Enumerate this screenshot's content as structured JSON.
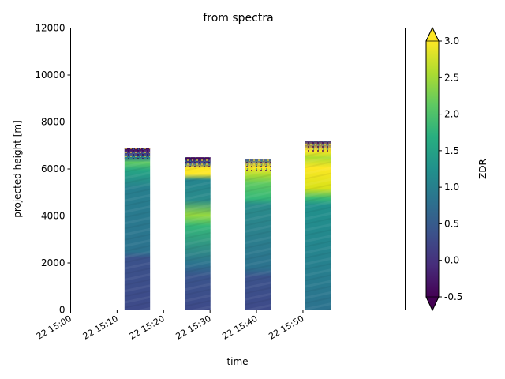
{
  "chart_data": {
    "type": "heatmap",
    "title": "from spectra",
    "xlabel": "time",
    "ylabel": "projected height [m]",
    "colorbar_label": "ZDR",
    "colormap": "viridis",
    "colorbar_extend": "both",
    "x_tick_labels": [
      "22 15:00",
      "22 15:10",
      "22 15:20",
      "22 15:30",
      "22 15:40",
      "22 15:50"
    ],
    "x_range_minutes": [
      0,
      60
    ],
    "y_ticks": [
      0,
      2000,
      4000,
      6000,
      8000,
      10000,
      12000
    ],
    "ylim": [
      0,
      12000
    ],
    "colorbar_ticks": [
      "-0.5",
      "0.0",
      "0.5",
      "1.0",
      "1.5",
      "2.0",
      "2.5",
      "3.0"
    ],
    "clim": [
      -0.5,
      3.0
    ],
    "segments": [
      {
        "start_min": 11.6,
        "end_min": 17.1,
        "top_height": 6900
      },
      {
        "start_min": 24.6,
        "end_min": 30.1,
        "top_height": 6500
      },
      {
        "start_min": 37.6,
        "end_min": 43.1,
        "top_height": 6400
      },
      {
        "start_min": 50.4,
        "end_min": 56.0,
        "top_height": 7200
      }
    ]
  }
}
